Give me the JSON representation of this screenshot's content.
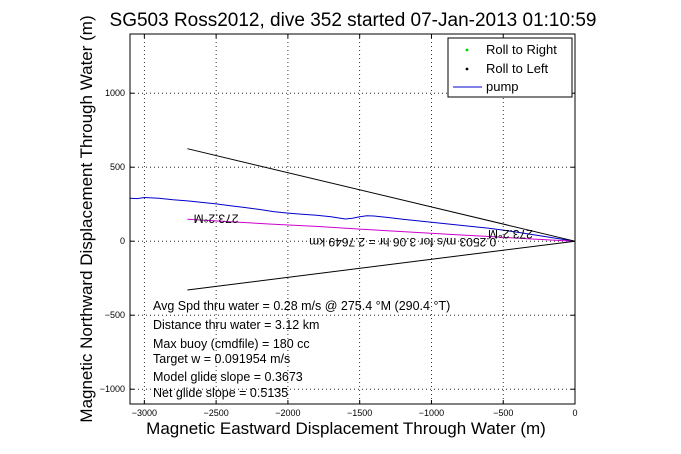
{
  "chart_data": {
    "type": "line",
    "title": "SG503 Ross2012, dive 352 started 07-Jan-2013 01:10:59",
    "xlabel": "Magnetic Eastward Displacement Through Water (m)",
    "ylabel": "Magnetic Northward Displacement Through Water (m)",
    "xlim": [
      -3100,
      0
    ],
    "ylim": [
      -1100,
      1400
    ],
    "xticks": [
      -3000,
      -2500,
      -2000,
      -1500,
      -1000,
      -500,
      0
    ],
    "yticks": [
      -1000,
      -500,
      0,
      500,
      1000
    ],
    "xtick_labels": [
      "−3000",
      "−2500",
      "−2000",
      "−1500",
      "−1000",
      "−500",
      "0"
    ],
    "ytick_labels": [
      "−1000",
      "−500",
      "0",
      "500",
      "1000"
    ],
    "grid": true,
    "legend": {
      "placement": "top-right",
      "entries": [
        {
          "label": "Roll to Right",
          "color": "#00cc00",
          "marker": "dot"
        },
        {
          "label": "Roll to Left",
          "color": "#000000",
          "marker": "dot"
        },
        {
          "label": "pump",
          "color": "#0000cc",
          "marker": "line"
        }
      ]
    },
    "series": [
      {
        "name": "pump",
        "color": "#0000cc",
        "x": [
          -3100,
          -3050,
          -3000,
          -2900,
          -2800,
          -2700,
          -2600,
          -2500,
          -2400,
          -2300,
          -2200,
          -2100,
          -2000,
          -1900,
          -1800,
          -1700,
          -1600,
          -1550,
          -1500,
          -1450,
          -1400,
          -1300,
          -1200,
          -1100,
          -1000,
          -900,
          -800,
          -700,
          -600,
          -500,
          -400,
          -300,
          -200,
          -100,
          0
        ],
        "y": [
          290,
          288,
          295,
          290,
          280,
          272,
          262,
          252,
          240,
          228,
          215,
          200,
          190,
          182,
          175,
          165,
          150,
          155,
          165,
          172,
          170,
          160,
          148,
          138,
          128,
          118,
          108,
          98,
          88,
          75,
          60,
          45,
          30,
          15,
          0
        ]
      },
      {
        "color": "#cc00cc",
        "x": [
          -2700,
          -2400,
          -2100,
          -1800,
          -1500,
          -1200,
          -900,
          -600,
          -300,
          0
        ],
        "y": [
          148,
          132,
          115,
          100,
          82,
          65,
          48,
          32,
          15,
          0
        ]
      },
      {
        "color": "#000000",
        "x": [
          -2700,
          0
        ],
        "y": [
          625,
          0
        ]
      },
      {
        "color": "#000000",
        "x": [
          -2700,
          0
        ],
        "y": [
          -330,
          0
        ]
      }
    ],
    "annotations": [
      "Avg Spd thru water = 0.28 m/s @ 275.4  °M (290.4 °T)",
      "Distance thru water = 3.12 km",
      "Max buoy (cmdfile) = 180 cc",
      "Target w = 0.091954 m/s",
      "Model glide slope = 0.3673",
      "Net glide slope = 0.5135"
    ],
    "plot_labels": [
      {
        "text": "273.2°M",
        "x": -2500,
        "y": 180,
        "upside_down": true
      },
      {
        "text": "273.2°M",
        "x": -450,
        "y": 75,
        "upside_down": true
      },
      {
        "text": "0.2503 m/s for 3.06 hr = 2.7649 km",
        "x": -1200,
        "y": 20,
        "upside_down": true
      }
    ]
  }
}
